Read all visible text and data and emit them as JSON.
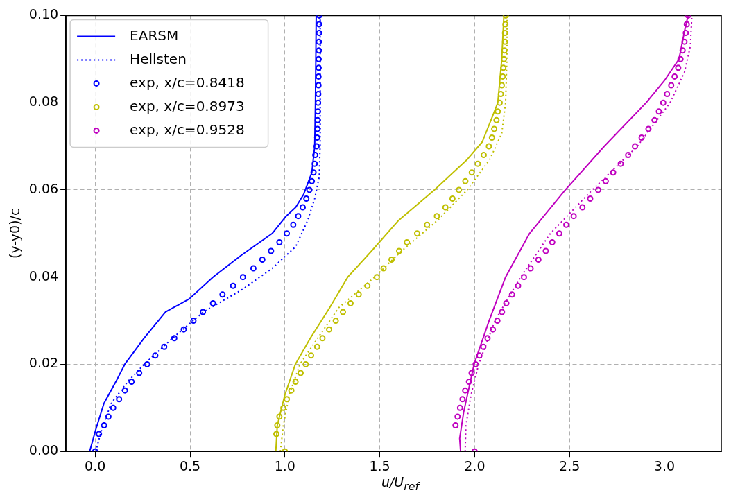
{
  "chart_data": {
    "type": "line",
    "xlabel": "u/U$_{ref}$",
    "ylabel": "(y-y0)/c",
    "xlim": [
      -0.154,
      3.3
    ],
    "xticks": [
      {
        "value": 0,
        "label": "0.0"
      },
      0.5,
      {
        "value": 1,
        "label": "1.0"
      },
      1.5,
      {
        "value": 2,
        "label": "2.0"
      },
      2.5,
      {
        "value": 3,
        "label": "3.0"
      }
    ],
    "ylim": [
      0,
      0.1
    ],
    "yticks": [
      {
        "value": 0,
        "label": "0.00"
      },
      0.02,
      0.04,
      0.06,
      0.08,
      {
        "value": 0.1,
        "label": "0.10"
      }
    ],
    "grid": true,
    "legend": "top left",
    "series": [
      {
        "name": "EARSM",
        "type": "line",
        "line_style": "solid",
        "marker": "none",
        "color": "#0000ff",
        "x": [
          -0.029,
          0.003,
          0.046,
          0.109,
          0.156,
          0.258,
          0.371,
          0.496,
          0.621,
          0.77,
          0.933,
          1.007,
          1.057,
          1.099,
          1.142,
          1.157,
          1.161,
          1.165
        ],
        "values": [
          0,
          0.005,
          0.011,
          0.016,
          0.02,
          0.026,
          0.032,
          0.035,
          0.04,
          0.045,
          0.05,
          0.054,
          0.056,
          0.059,
          0.064,
          0.07,
          0.08,
          0.1
        ]
      },
      {
        "name": "Hellsten",
        "type": "line",
        "line_style": "dotted",
        "marker": "none",
        "color": "#0000ff",
        "x": [
          0.003,
          0.034,
          0.084,
          0.171,
          0.258,
          0.408,
          0.57,
          0.77,
          0.933,
          1.057,
          1.12,
          1.157,
          1.181,
          1.186,
          1.186
        ],
        "values": [
          0,
          0.005,
          0.011,
          0.016,
          0.02,
          0.026,
          0.032,
          0.037,
          0.042,
          0.047,
          0.053,
          0.058,
          0.063,
          0.071,
          0.1
        ]
      },
      {
        "name": "exp, x/c=0.8418",
        "type": "scatter",
        "marker": "circle",
        "color": "#0000ff",
        "x": [
          0.0,
          0.02,
          0.047,
          0.07,
          0.095,
          0.126,
          0.157,
          0.192,
          0.232,
          0.274,
          0.317,
          0.364,
          0.417,
          0.467,
          0.518,
          0.568,
          0.621,
          0.671,
          0.727,
          0.779,
          0.834,
          0.881,
          0.927,
          0.971,
          1.01,
          1.044,
          1.07,
          1.094,
          1.113,
          1.129,
          1.142,
          1.151,
          1.157,
          1.16,
          1.167,
          1.17,
          1.172,
          1.173,
          1.174,
          1.175,
          1.176,
          1.177,
          1.177,
          1.178,
          1.178,
          1.179,
          1.179,
          1.18,
          1.18,
          1.181
        ],
        "values": [
          0,
          0.004,
          0.006,
          0.008,
          0.01,
          0.012,
          0.014,
          0.016,
          0.018,
          0.02,
          0.022,
          0.024,
          0.026,
          0.028,
          0.03,
          0.032,
          0.034,
          0.036,
          0.038,
          0.04,
          0.042,
          0.044,
          0.046,
          0.048,
          0.05,
          0.052,
          0.054,
          0.056,
          0.058,
          0.06,
          0.062,
          0.064,
          0.066,
          0.068,
          0.07,
          0.072,
          0.074,
          0.076,
          0.078,
          0.08,
          0.082,
          0.084,
          0.086,
          0.088,
          0.09,
          0.092,
          0.094,
          0.096,
          0.098,
          0.1
        ]
      },
      {
        "type": "line",
        "line_style": "solid",
        "marker": "none",
        "color": "#bfbf00",
        "x": [
          0.952,
          0.96,
          1.0,
          1.055,
          1.134,
          1.236,
          1.331,
          1.457,
          1.599,
          1.788,
          1.961,
          2.04,
          2.095,
          2.122,
          2.143,
          2.154
        ],
        "values": [
          0,
          0.006,
          0.013,
          0.02,
          0.026,
          0.033,
          0.04,
          0.046,
          0.053,
          0.06,
          0.067,
          0.071,
          0.077,
          0.08,
          0.09,
          0.1
        ]
      },
      {
        "type": "line",
        "line_style": "dotted",
        "marker": "none",
        "color": "#bfbf00",
        "x": [
          0.976,
          0.992,
          1.023,
          1.079,
          1.173,
          1.284,
          1.473,
          1.615,
          1.804,
          1.961,
          2.08,
          2.143,
          2.163,
          2.17,
          2.171
        ],
        "values": [
          0,
          0.006,
          0.013,
          0.02,
          0.026,
          0.033,
          0.04,
          0.046,
          0.053,
          0.06,
          0.067,
          0.073,
          0.08,
          0.09,
          0.1
        ]
      },
      {
        "name": "exp, x/c=0.8973",
        "type": "scatter",
        "marker": "circle",
        "color": "#bfbf00",
        "x": [
          1.0,
          0.955,
          0.96,
          0.971,
          0.992,
          1.01,
          1.034,
          1.056,
          1.083,
          1.11,
          1.138,
          1.17,
          1.198,
          1.233,
          1.268,
          1.306,
          1.346,
          1.389,
          1.435,
          1.485,
          1.52,
          1.562,
          1.602,
          1.643,
          1.697,
          1.749,
          1.801,
          1.846,
          1.883,
          1.917,
          1.951,
          1.985,
          2.017,
          2.048,
          2.075,
          2.091,
          2.103,
          2.115,
          2.122,
          2.132,
          2.138,
          2.143,
          2.148,
          2.151,
          2.154,
          2.157,
          2.16,
          2.16,
          2.162,
          2.164
        ],
        "values": [
          0,
          0.004,
          0.006,
          0.008,
          0.01,
          0.012,
          0.014,
          0.016,
          0.018,
          0.02,
          0.022,
          0.024,
          0.026,
          0.028,
          0.03,
          0.032,
          0.034,
          0.036,
          0.038,
          0.04,
          0.042,
          0.044,
          0.046,
          0.048,
          0.05,
          0.052,
          0.054,
          0.056,
          0.058,
          0.06,
          0.062,
          0.064,
          0.066,
          0.068,
          0.07,
          0.072,
          0.074,
          0.076,
          0.078,
          0.08,
          0.082,
          0.084,
          0.086,
          0.088,
          0.09,
          0.092,
          0.094,
          0.096,
          0.098,
          0.1
        ]
      },
      {
        "type": "line",
        "line_style": "solid",
        "marker": "none",
        "color": "#bf00bf",
        "x": [
          1.926,
          1.921,
          1.942,
          1.997,
          2.076,
          2.163,
          2.289,
          2.478,
          2.683,
          2.904,
          2.999,
          3.077,
          3.109,
          3.125
        ],
        "values": [
          0,
          0.003,
          0.009,
          0.02,
          0.03,
          0.04,
          0.05,
          0.06,
          0.07,
          0.08,
          0.085,
          0.09,
          0.097,
          0.1
        ]
      },
      {
        "type": "line",
        "line_style": "dotted",
        "marker": "none",
        "color": "#bf00bf",
        "x": [
          1.95,
          1.954,
          1.981,
          2.021,
          2.107,
          2.242,
          2.399,
          2.62,
          2.857,
          3.03,
          3.106,
          3.137,
          3.145
        ],
        "values": [
          0,
          0.006,
          0.013,
          0.02,
          0.03,
          0.04,
          0.05,
          0.06,
          0.07,
          0.08,
          0.087,
          0.093,
          0.1
        ]
      },
      {
        "name": "exp, x/c=0.9528",
        "type": "scatter",
        "marker": "circle",
        "color": "#bf00bf",
        "x": [
          2.0,
          1.899,
          1.91,
          1.923,
          1.936,
          1.95,
          1.97,
          1.984,
          2.005,
          2.025,
          2.046,
          2.068,
          2.096,
          2.12,
          2.144,
          2.167,
          2.197,
          2.229,
          2.26,
          2.295,
          2.336,
          2.375,
          2.409,
          2.446,
          2.483,
          2.522,
          2.568,
          2.609,
          2.651,
          2.691,
          2.73,
          2.77,
          2.809,
          2.845,
          2.88,
          2.916,
          2.948,
          2.971,
          2.994,
          3.014,
          3.036,
          3.054,
          3.073,
          3.085,
          3.096,
          3.106,
          3.113,
          3.118,
          3.125
        ],
        "values": [
          0,
          0.006,
          0.008,
          0.01,
          0.012,
          0.014,
          0.016,
          0.018,
          0.02,
          0.022,
          0.024,
          0.026,
          0.028,
          0.03,
          0.032,
          0.034,
          0.036,
          0.038,
          0.04,
          0.042,
          0.044,
          0.046,
          0.048,
          0.05,
          0.052,
          0.054,
          0.056,
          0.058,
          0.06,
          0.062,
          0.064,
          0.066,
          0.068,
          0.07,
          0.072,
          0.074,
          0.076,
          0.078,
          0.08,
          0.082,
          0.084,
          0.086,
          0.088,
          0.09,
          0.092,
          0.094,
          0.096,
          0.098,
          0.1
        ]
      }
    ]
  }
}
